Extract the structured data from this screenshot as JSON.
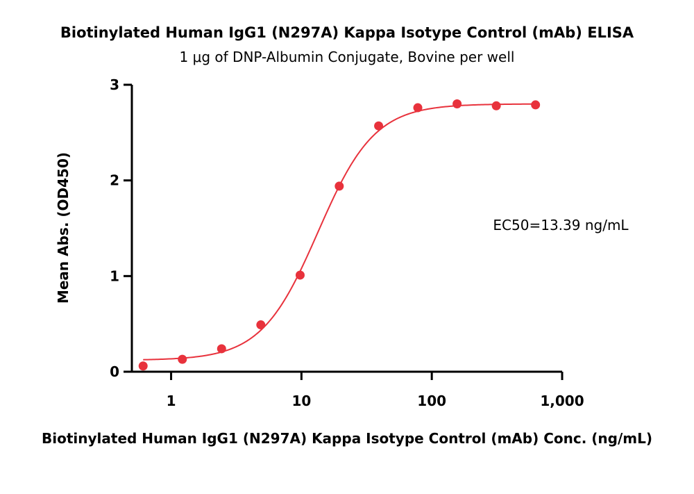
{
  "chart_data": {
    "type": "scatter",
    "title": "Biotinylated Human IgG1 (N297A) Kappa Isotype Control (mAb) ELISA",
    "subtitle": "1 μg of DNP-Albumin Conjugate, Bovine per well",
    "xlabel": "Biotinylated Human IgG1 (N297A) Kappa Isotype Control (mAb) Conc. (ng/mL)",
    "ylabel": "Mean Abs. (OD450)",
    "xscale": "log",
    "xlim": [
      0.5,
      1000
    ],
    "ylim": [
      0,
      3
    ],
    "x_ticks": [
      1,
      10,
      100,
      1000
    ],
    "x_tick_labels": [
      "1",
      "10",
      "100",
      "1,000"
    ],
    "y_ticks": [
      0,
      1,
      2,
      3
    ],
    "y_tick_labels": [
      "0",
      "1",
      "2",
      "3"
    ],
    "grid": false,
    "color": "#e8323c",
    "series": [
      {
        "x": [
          0.61,
          1.22,
          2.44,
          4.88,
          9.77,
          19.5,
          39.1,
          78.1,
          156.3,
          312.5,
          625
        ],
        "y": [
          0.06,
          0.13,
          0.24,
          0.49,
          1.01,
          1.94,
          2.57,
          2.76,
          2.8,
          2.78,
          2.79
        ]
      }
    ],
    "fit": {
      "model": "4PL",
      "bottom": 0.12,
      "top": 2.8,
      "ec50": 13.39,
      "hill": 2.0
    },
    "annotation": "EC50=13.39 ng/mL"
  }
}
